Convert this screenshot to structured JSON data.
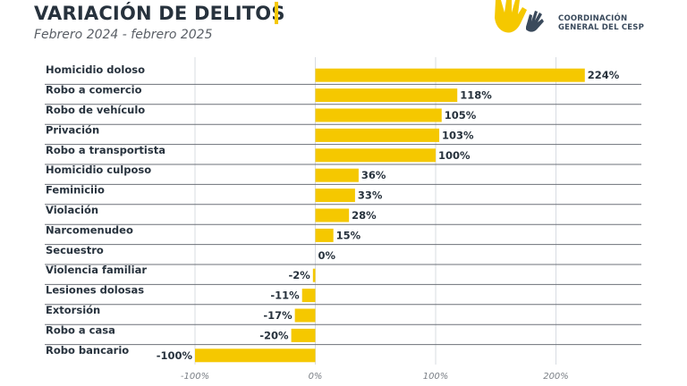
{
  "header": {
    "title": "VARIACIÓN DE DELITOS",
    "subtitle": "Febrero 2024 - febrero 2025",
    "logo_line1": "COORDINACIÓN",
    "logo_line2": "GENERAL DEL CESP",
    "logo_icon": "hands-icon"
  },
  "colors": {
    "bar": "#f5c800",
    "text": "#27323d",
    "grid": "#d8dce2",
    "separator": "#6d7178",
    "logo_yellow": "#f5c800",
    "logo_dark": "#3a4a5c"
  },
  "chart_data": {
    "type": "bar",
    "orientation": "horizontal",
    "title": "VARIACIÓN DE DELITOS",
    "subtitle": "Febrero 2024 - febrero 2025",
    "xlabel": "",
    "ylabel": "",
    "xlim": [
      -100,
      230
    ],
    "grid": true,
    "legend": "none",
    "categories": [
      "Homicidio doloso",
      "Robo a comercio",
      "Robo de vehículo",
      "Privación",
      "Robo a transportista",
      "Homicidio culposo",
      "Feminiciio",
      "Violación",
      "Narcomenudeo",
      "Secuestro",
      "Violencia familiar",
      "Lesiones dolosas",
      "Extorsión",
      "Robo a casa",
      "Robo bancario"
    ],
    "values": [
      224,
      118,
      105,
      103,
      100,
      36,
      33,
      28,
      15,
      0,
      -2,
      -11,
      -17,
      -20,
      -100
    ],
    "value_labels": [
      "224%",
      "118%",
      "105%",
      "103%",
      "100%",
      "36%",
      "33%",
      "28%",
      "15%",
      "0%",
      "-2%",
      "-11%",
      "-17%",
      "-20%",
      "-100%"
    ],
    "x_ticks": [
      -100,
      0,
      100,
      200
    ],
    "x_tick_labels": [
      "-100%",
      "0%",
      "100%",
      "200%"
    ]
  }
}
